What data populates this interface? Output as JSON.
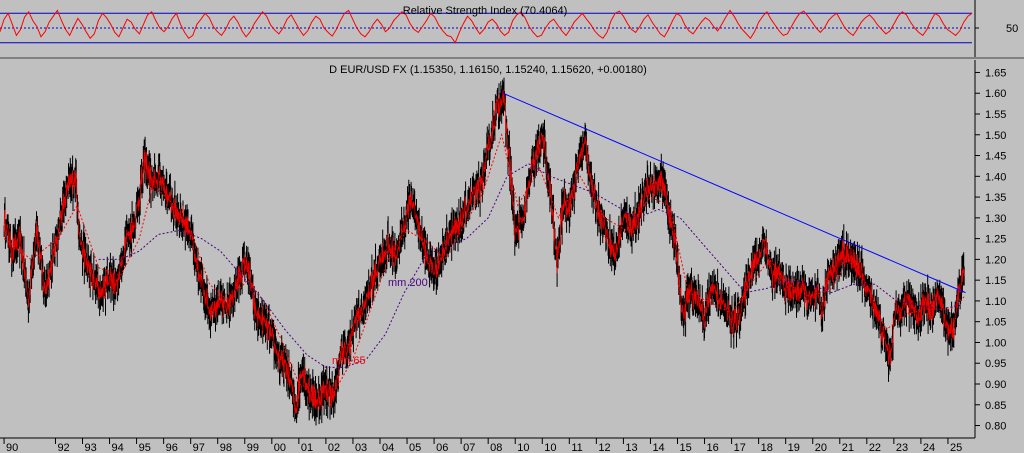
{
  "chart_data": [
    {
      "panel": "rsi",
      "type": "line",
      "title": "Relative Strength Index (70.4064)",
      "y_ticks": [
        "50"
      ],
      "levels": [
        70,
        50,
        30
      ],
      "ylim": [
        16,
        84
      ],
      "colors": {
        "line": "#ff0000",
        "levels": "#0000cc",
        "mid": "#0000cc"
      },
      "series": [
        {
          "values": [
            45,
            62,
            70,
            55,
            40,
            48,
            65,
            72,
            60,
            52,
            38,
            45,
            58,
            66,
            74,
            60,
            48,
            40,
            52,
            63,
            55,
            45,
            36,
            42,
            60,
            70,
            64,
            55,
            44,
            38,
            50,
            62,
            58,
            48,
            42,
            55,
            68,
            72,
            60,
            50,
            45,
            52,
            63,
            70,
            55,
            44,
            36,
            40,
            55,
            62,
            70,
            64,
            52,
            45,
            40,
            48,
            60,
            66,
            58,
            46,
            38,
            45,
            56,
            64,
            72,
            66,
            54,
            47,
            42,
            50,
            62,
            68,
            58,
            48,
            40,
            46,
            58,
            66,
            62,
            50,
            44,
            39,
            48,
            60,
            70,
            74,
            62,
            50,
            42,
            38,
            45,
            55,
            62,
            55,
            45,
            50,
            60,
            66,
            72,
            68,
            56,
            48,
            44,
            52,
            60,
            70,
            65,
            54,
            46,
            40,
            38,
            30,
            44,
            56,
            66,
            60,
            50,
            42,
            48,
            58,
            62,
            56,
            46,
            40,
            44,
            60,
            68,
            72,
            64,
            52,
            44,
            38,
            40,
            50,
            58,
            62,
            54,
            46,
            40,
            48,
            58,
            64,
            70,
            62,
            55,
            46,
            40,
            36,
            44,
            60,
            70,
            73,
            66,
            56,
            48,
            44,
            52,
            62,
            68,
            58,
            50,
            42,
            38,
            48,
            60,
            70,
            66,
            54,
            46,
            42,
            50,
            58,
            64,
            60,
            52,
            46,
            55,
            65,
            74,
            66,
            56,
            48,
            42,
            36,
            45,
            58,
            66,
            72,
            62,
            54,
            46,
            40,
            42,
            52,
            62,
            70,
            73,
            66,
            58,
            50,
            44,
            50,
            60,
            66,
            70,
            60,
            50,
            44,
            40,
            48,
            58,
            64,
            68,
            62,
            54,
            48,
            42,
            46,
            56,
            66,
            72,
            68,
            58,
            50,
            44,
            40,
            48,
            60,
            70,
            66,
            56,
            48,
            44,
            40,
            46,
            58,
            66,
            70
          ]
        }
      ]
    },
    {
      "panel": "price",
      "type": "line",
      "title": "D EUR/USD FX (1.15350, 1.16150, 1.15240, 1.15620, +0.00180)",
      "ylim": [
        0.77,
        1.68
      ],
      "y_ticks": [
        "1.65",
        "1.60",
        "1.55",
        "1.50",
        "1.45",
        "1.40",
        "1.35",
        "1.30",
        "1.25",
        "1.20",
        "1.15",
        "1.10",
        "1.05",
        "1.00",
        "0.95",
        "0.90",
        "0.85",
        "0.80"
      ],
      "x_ticks": [
        "90",
        "92",
        "93",
        "94",
        "95",
        "96",
        "97",
        "98",
        "99",
        "00",
        "01",
        "02",
        "03",
        "04",
        "05",
        "06",
        "07",
        "08",
        "10",
        "10",
        "11",
        "12",
        "13",
        "14",
        "15",
        "16",
        "17",
        "18",
        "19",
        "20",
        "21",
        "22",
        "23",
        "24",
        "25"
      ],
      "annotations": [
        "mm 200",
        "mm 65"
      ],
      "colors": {
        "price": "#000000",
        "price_alt": "#ff0000",
        "mm65": "#ff0000",
        "mm200": "#4b0082",
        "trendline": "#0000ff"
      },
      "price_points": [
        [
          1990.0,
          1.3
        ],
        [
          1990.3,
          1.22
        ],
        [
          1990.6,
          1.25
        ],
        [
          1990.9,
          1.1
        ],
        [
          1991.2,
          1.28
        ],
        [
          1991.5,
          1.12
        ],
        [
          1991.8,
          1.2
        ],
        [
          1992.1,
          1.3
        ],
        [
          1992.4,
          1.38
        ],
        [
          1992.65,
          1.4
        ],
        [
          1992.8,
          1.25
        ],
        [
          1993.0,
          1.2
        ],
        [
          1993.3,
          1.15
        ],
        [
          1993.6,
          1.12
        ],
        [
          1993.9,
          1.16
        ],
        [
          1994.2,
          1.14
        ],
        [
          1994.5,
          1.25
        ],
        [
          1994.8,
          1.28
        ],
        [
          1995.0,
          1.35
        ],
        [
          1995.2,
          1.44
        ],
        [
          1995.5,
          1.38
        ],
        [
          1995.8,
          1.4
        ],
        [
          1996.0,
          1.36
        ],
        [
          1996.3,
          1.32
        ],
        [
          1996.6,
          1.3
        ],
        [
          1996.9,
          1.27
        ],
        [
          1997.1,
          1.18
        ],
        [
          1997.4,
          1.13
        ],
        [
          1997.6,
          1.08
        ],
        [
          1997.9,
          1.1
        ],
        [
          1998.2,
          1.08
        ],
        [
          1998.5,
          1.12
        ],
        [
          1998.8,
          1.18
        ],
        [
          1999.0,
          1.19
        ],
        [
          1999.3,
          1.07
        ],
        [
          1999.6,
          1.05
        ],
        [
          1999.9,
          1.01
        ],
        [
          2000.2,
          0.96
        ],
        [
          2000.5,
          0.93
        ],
        [
          2000.8,
          0.84
        ],
        [
          2001.0,
          0.94
        ],
        [
          2001.3,
          0.88
        ],
        [
          2001.6,
          0.86
        ],
        [
          2001.9,
          0.89
        ],
        [
          2002.2,
          0.87
        ],
        [
          2002.5,
          0.98
        ],
        [
          2002.8,
          0.99
        ],
        [
          2003.0,
          1.06
        ],
        [
          2003.3,
          1.08
        ],
        [
          2003.6,
          1.14
        ],
        [
          2003.9,
          1.2
        ],
        [
          2004.2,
          1.23
        ],
        [
          2004.5,
          1.21
        ],
        [
          2004.8,
          1.28
        ],
        [
          2005.0,
          1.35
        ],
        [
          2005.3,
          1.29
        ],
        [
          2005.6,
          1.21
        ],
        [
          2005.9,
          1.17
        ],
        [
          2006.2,
          1.21
        ],
        [
          2006.5,
          1.27
        ],
        [
          2006.8,
          1.27
        ],
        [
          2007.0,
          1.31
        ],
        [
          2007.3,
          1.35
        ],
        [
          2007.6,
          1.37
        ],
        [
          2007.9,
          1.46
        ],
        [
          2008.2,
          1.56
        ],
        [
          2008.45,
          1.6
        ],
        [
          2008.7,
          1.43
        ],
        [
          2008.9,
          1.26
        ],
        [
          2009.2,
          1.3
        ],
        [
          2009.5,
          1.41
        ],
        [
          2009.9,
          1.5
        ],
        [
          2010.2,
          1.36
        ],
        [
          2010.45,
          1.19
        ],
        [
          2010.7,
          1.35
        ],
        [
          2010.9,
          1.32
        ],
        [
          2011.3,
          1.45
        ],
        [
          2011.5,
          1.48
        ],
        [
          2011.8,
          1.35
        ],
        [
          2012.1,
          1.3
        ],
        [
          2012.4,
          1.24
        ],
        [
          2012.6,
          1.21
        ],
        [
          2012.9,
          1.3
        ],
        [
          2013.2,
          1.28
        ],
        [
          2013.5,
          1.31
        ],
        [
          2013.8,
          1.38
        ],
        [
          2014.1,
          1.37
        ],
        [
          2014.35,
          1.39
        ],
        [
          2014.6,
          1.31
        ],
        [
          2014.9,
          1.2
        ],
        [
          2015.1,
          1.05
        ],
        [
          2015.3,
          1.12
        ],
        [
          2015.6,
          1.11
        ],
        [
          2015.9,
          1.06
        ],
        [
          2016.2,
          1.14
        ],
        [
          2016.5,
          1.1
        ],
        [
          2016.8,
          1.07
        ],
        [
          2016.95,
          1.04
        ],
        [
          2017.3,
          1.09
        ],
        [
          2017.6,
          1.18
        ],
        [
          2017.9,
          1.2
        ],
        [
          2018.1,
          1.25
        ],
        [
          2018.4,
          1.16
        ],
        [
          2018.7,
          1.16
        ],
        [
          2018.9,
          1.13
        ],
        [
          2019.2,
          1.12
        ],
        [
          2019.5,
          1.13
        ],
        [
          2019.8,
          1.1
        ],
        [
          2020.1,
          1.11
        ],
        [
          2020.25,
          1.07
        ],
        [
          2020.5,
          1.17
        ],
        [
          2020.8,
          1.19
        ],
        [
          2021.0,
          1.22
        ],
        [
          2021.3,
          1.2
        ],
        [
          2021.6,
          1.18
        ],
        [
          2021.9,
          1.13
        ],
        [
          2022.2,
          1.09
        ],
        [
          2022.5,
          1.02
        ],
        [
          2022.75,
          0.96
        ],
        [
          2022.95,
          1.07
        ],
        [
          2023.2,
          1.09
        ],
        [
          2023.5,
          1.1
        ],
        [
          2023.8,
          1.06
        ],
        [
          2024.0,
          1.1
        ],
        [
          2024.3,
          1.08
        ],
        [
          2024.6,
          1.11
        ],
        [
          2024.85,
          1.04
        ],
        [
          2025.1,
          1.03
        ],
        [
          2025.3,
          1.13
        ],
        [
          2025.5,
          1.16
        ]
      ],
      "mm65_points": [
        [
          1990.0,
          1.25
        ],
        [
          1991.0,
          1.2
        ],
        [
          1992.0,
          1.25
        ],
        [
          1992.7,
          1.33
        ],
        [
          1993.5,
          1.18
        ],
        [
          1994.3,
          1.16
        ],
        [
          1995.0,
          1.25
        ],
        [
          1995.5,
          1.38
        ],
        [
          1996.3,
          1.33
        ],
        [
          1997.0,
          1.25
        ],
        [
          1997.6,
          1.14
        ],
        [
          1998.3,
          1.1
        ],
        [
          1999.0,
          1.15
        ],
        [
          1999.6,
          1.1
        ],
        [
          2000.3,
          1.0
        ],
        [
          2000.9,
          0.9
        ],
        [
          2001.6,
          0.88
        ],
        [
          2002.2,
          0.88
        ],
        [
          2002.9,
          0.96
        ],
        [
          2003.5,
          1.07
        ],
        [
          2004.2,
          1.2
        ],
        [
          2004.9,
          1.27
        ],
        [
          2005.7,
          1.24
        ],
        [
          2006.3,
          1.2
        ],
        [
          2007.0,
          1.28
        ],
        [
          2007.7,
          1.36
        ],
        [
          2008.4,
          1.5
        ],
        [
          2009.0,
          1.33
        ],
        [
          2009.8,
          1.42
        ],
        [
          2010.5,
          1.3
        ],
        [
          2011.3,
          1.4
        ],
        [
          2012.2,
          1.3
        ],
        [
          2013.0,
          1.27
        ],
        [
          2013.9,
          1.35
        ],
        [
          2014.6,
          1.33
        ],
        [
          2015.3,
          1.12
        ],
        [
          2016.0,
          1.1
        ],
        [
          2016.9,
          1.07
        ],
        [
          2017.6,
          1.14
        ],
        [
          2018.3,
          1.2
        ],
        [
          2019.0,
          1.14
        ],
        [
          2019.8,
          1.11
        ],
        [
          2020.6,
          1.13
        ],
        [
          2021.2,
          1.2
        ],
        [
          2021.9,
          1.14
        ],
        [
          2022.6,
          1.03
        ],
        [
          2023.4,
          1.07
        ],
        [
          2024.2,
          1.08
        ],
        [
          2025.0,
          1.08
        ],
        [
          2025.5,
          1.11
        ]
      ],
      "mm200_points": [
        [
          1993.5,
          1.2
        ],
        [
          1994.3,
          1.2
        ],
        [
          1995.0,
          1.22
        ],
        [
          1995.7,
          1.26
        ],
        [
          1996.5,
          1.27
        ],
        [
          1997.3,
          1.25
        ],
        [
          1998.0,
          1.22
        ],
        [
          1998.8,
          1.16
        ],
        [
          1999.6,
          1.1
        ],
        [
          2000.4,
          1.03
        ],
        [
          2001.2,
          0.97
        ],
        [
          2001.9,
          0.94
        ],
        [
          2002.6,
          0.94
        ],
        [
          2003.4,
          0.96
        ],
        [
          2004.1,
          1.02
        ],
        [
          2004.8,
          1.12
        ],
        [
          2005.6,
          1.21
        ],
        [
          2006.3,
          1.23
        ],
        [
          2007.1,
          1.25
        ],
        [
          2007.9,
          1.3
        ],
        [
          2008.6,
          1.4
        ],
        [
          2009.4,
          1.43
        ],
        [
          2010.2,
          1.4
        ],
        [
          2011.0,
          1.38
        ],
        [
          2011.8,
          1.36
        ],
        [
          2012.6,
          1.33
        ],
        [
          2013.4,
          1.3
        ],
        [
          2014.2,
          1.32
        ],
        [
          2015.0,
          1.3
        ],
        [
          2015.8,
          1.24
        ],
        [
          2016.6,
          1.18
        ],
        [
          2017.4,
          1.12
        ],
        [
          2018.2,
          1.13
        ],
        [
          2019.0,
          1.15
        ],
        [
          2019.8,
          1.14
        ],
        [
          2020.6,
          1.12
        ],
        [
          2021.4,
          1.14
        ],
        [
          2022.2,
          1.14
        ],
        [
          2023.0,
          1.1
        ],
        [
          2023.8,
          1.09
        ],
        [
          2024.6,
          1.08
        ],
        [
          2025.4,
          1.09
        ]
      ],
      "trendline": [
        [
          2008.45,
          1.6
        ],
        [
          2025.55,
          1.12
        ]
      ]
    }
  ]
}
